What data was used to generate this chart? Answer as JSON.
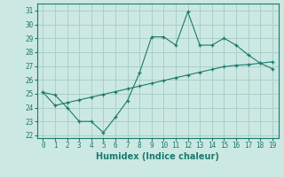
{
  "xlabel": "Humidex (Indice chaleur)",
  "x": [
    0,
    1,
    2,
    3,
    4,
    5,
    6,
    7,
    8,
    9,
    10,
    11,
    12,
    13,
    14,
    15,
    16,
    17,
    18,
    19
  ],
  "line1": [
    25.1,
    24.9,
    24.0,
    23.0,
    23.0,
    22.2,
    23.3,
    24.5,
    26.5,
    29.1,
    29.1,
    28.5,
    30.9,
    28.5,
    28.5,
    29.0,
    28.5,
    27.8,
    27.2,
    26.8
  ],
  "line2": [
    25.1,
    24.15,
    24.35,
    24.55,
    24.75,
    24.95,
    25.15,
    25.35,
    25.55,
    25.75,
    25.95,
    26.15,
    26.35,
    26.55,
    26.75,
    26.95,
    27.05,
    27.1,
    27.2,
    27.3
  ],
  "line_color": "#1a7a6e",
  "bg_color": "#cce8e2",
  "grid_color": "#aacfca",
  "ylim": [
    21.8,
    31.5
  ],
  "yticks": [
    22,
    23,
    24,
    25,
    26,
    27,
    28,
    29,
    30,
    31
  ],
  "xticks": [
    0,
    1,
    2,
    3,
    4,
    5,
    6,
    7,
    8,
    9,
    10,
    11,
    12,
    13,
    14,
    15,
    16,
    17,
    18,
    19
  ],
  "tick_fontsize": 5.5,
  "xlabel_fontsize": 7
}
